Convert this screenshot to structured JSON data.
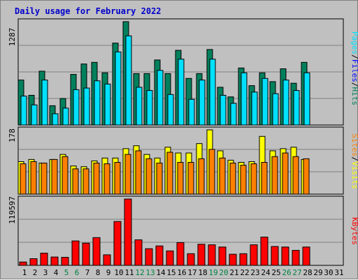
{
  "chart_title": "Daily usage for February 2022",
  "colors": {
    "hits": "#00805c",
    "files": "#00e0ff",
    "sites": "#ff8000",
    "visits": "#ffff00",
    "kbytes": "#ff0000",
    "weekend_day": "#008040",
    "weekday": "#000000",
    "grid": "#7f7f7f",
    "plot_bg": "#c0c0c0",
    "title": "#0000cc"
  },
  "legend": {
    "hits": "Hits",
    "files": "Files",
    "pages": "Pages",
    "visits": "Visits",
    "sites": "Sites",
    "kbytes": "KBytes",
    "sep": "/"
  },
  "chart_data": [
    {
      "type": "bar",
      "panel": "hits-files-pages",
      "ymax_label": "1287",
      "ylim": [
        0,
        1287
      ],
      "categories": [
        "1",
        "2",
        "3",
        "4",
        "5",
        "6",
        "7",
        "8",
        "9",
        "10",
        "11",
        "12",
        "13",
        "14",
        "15",
        "16",
        "17",
        "18",
        "19",
        "20",
        "21",
        "22",
        "23",
        "24",
        "25",
        "26",
        "27",
        "28",
        "29",
        "30",
        "31"
      ],
      "series": [
        {
          "name": "Hits",
          "values": [
            560,
            370,
            670,
            240,
            330,
            630,
            760,
            780,
            650,
            1020,
            1287,
            640,
            640,
            810,
            640,
            930,
            580,
            640,
            940,
            470,
            350,
            710,
            490,
            650,
            540,
            700,
            520,
            780,
            0,
            0,
            0
          ]
        },
        {
          "name": "Files",
          "values": [
            360,
            250,
            560,
            140,
            210,
            440,
            460,
            550,
            510,
            910,
            1110,
            470,
            430,
            680,
            380,
            820,
            320,
            560,
            820,
            370,
            270,
            650,
            410,
            580,
            390,
            560,
            430,
            650,
            0,
            0,
            0
          ]
        },
        {
          "name": "Pages",
          "values": [
            0,
            0,
            0,
            0,
            0,
            0,
            0,
            0,
            0,
            0,
            0,
            0,
            0,
            0,
            0,
            0,
            0,
            0,
            0,
            0,
            0,
            0,
            0,
            0,
            0,
            0,
            0,
            0,
            0,
            0,
            0
          ]
        }
      ]
    },
    {
      "type": "bar",
      "panel": "visits-sites",
      "ymax_label": "178",
      "ylim": [
        0,
        178
      ],
      "categories": [
        "1",
        "2",
        "3",
        "4",
        "5",
        "6",
        "7",
        "8",
        "9",
        "10",
        "11",
        "12",
        "13",
        "14",
        "15",
        "16",
        "17",
        "18",
        "19",
        "20",
        "21",
        "22",
        "23",
        "24",
        "25",
        "26",
        "27",
        "28",
        "29",
        "30",
        "31"
      ],
      "series": [
        {
          "name": "Visits",
          "values": [
            90,
            96,
            86,
            96,
            110,
            78,
            76,
            92,
            100,
            100,
            126,
            134,
            110,
            100,
            130,
            114,
            114,
            140,
            178,
            120,
            94,
            88,
            90,
            160,
            120,
            126,
            130,
            96,
            0,
            0,
            0
          ]
        },
        {
          "name": "Sites",
          "values": [
            84,
            90,
            86,
            96,
            104,
            70,
            70,
            86,
            84,
            88,
            110,
            120,
            98,
            86,
            116,
            88,
            88,
            98,
            124,
            100,
            86,
            80,
            84,
            88,
            104,
            114,
            104,
            98,
            0,
            0,
            0
          ]
        }
      ]
    },
    {
      "type": "bar",
      "panel": "kbytes",
      "ymax_label": "119597",
      "ylim": [
        0,
        119597
      ],
      "categories": [
        "1",
        "2",
        "3",
        "4",
        "5",
        "6",
        "7",
        "8",
        "9",
        "10",
        "11",
        "12",
        "13",
        "14",
        "15",
        "16",
        "17",
        "18",
        "19",
        "20",
        "21",
        "22",
        "23",
        "24",
        "25",
        "26",
        "27",
        "28",
        "29",
        "30",
        "31"
      ],
      "series": [
        {
          "name": "KBytes",
          "values": [
            6000,
            12000,
            22000,
            15000,
            14500,
            44000,
            40000,
            50000,
            19000,
            79000,
            119597,
            46000,
            30000,
            35000,
            26000,
            41000,
            21000,
            38000,
            37000,
            33000,
            20000,
            21000,
            37000,
            51000,
            34000,
            33000,
            27000,
            33000,
            0,
            0,
            0
          ]
        }
      ]
    }
  ]
}
